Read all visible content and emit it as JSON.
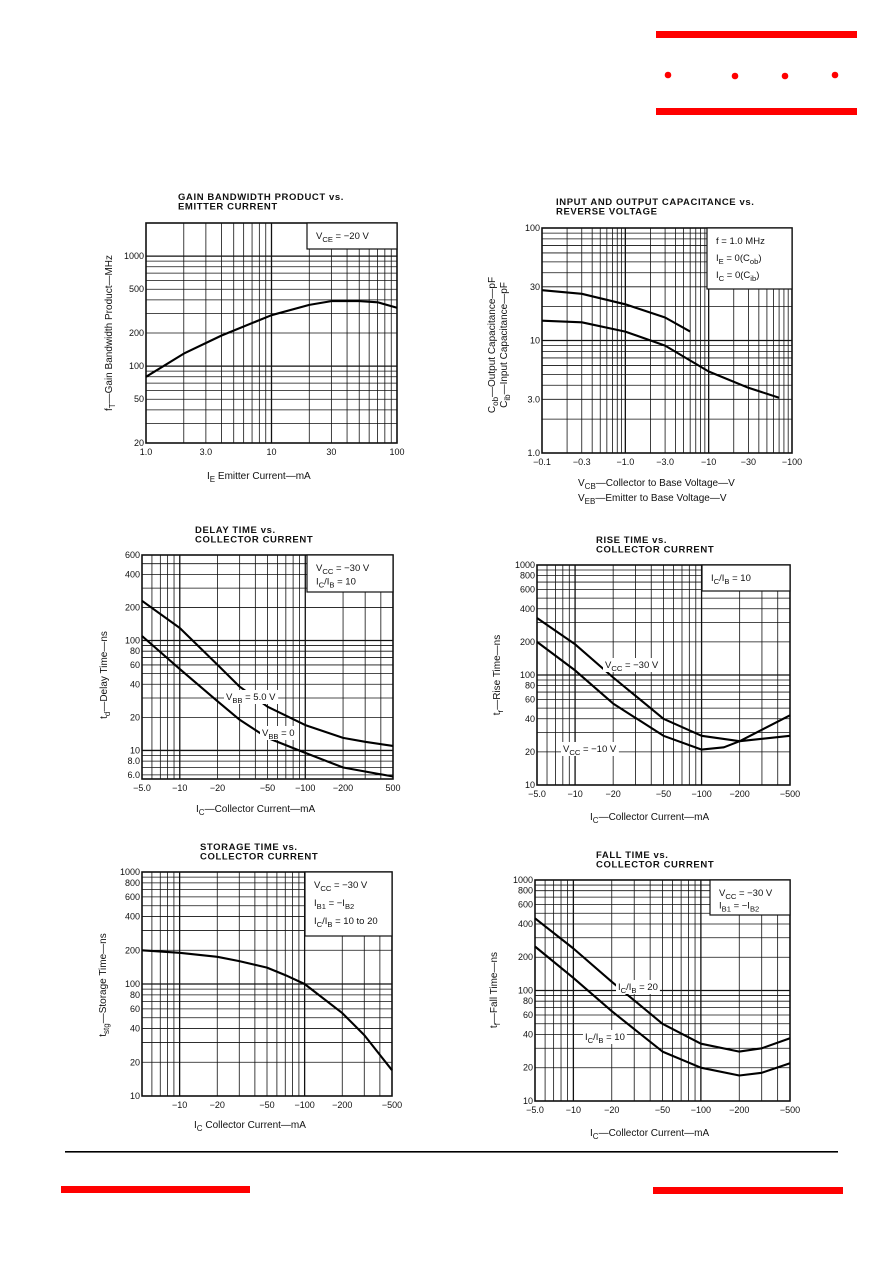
{
  "brand": {
    "accent_color": "#ff0000",
    "rule_color": "#000000"
  },
  "chart_data": [
    {
      "type": "line",
      "title": [
        "GAIN BANDWIDTH PRODUCT vs.",
        "EMITTER CURRENT"
      ],
      "xlabel": [
        "I",
        "_E",
        "  Emitter Current—mA"
      ],
      "ylabel": [
        [
          "f",
          "_T",
          "—Gain Bandwidth Product—MHz"
        ]
      ],
      "xscale": "log",
      "yscale": "log",
      "xlim": [
        1,
        100
      ],
      "ylim": [
        20,
        2000
      ],
      "xticks": [
        {
          "v": 1,
          "t": "1.0"
        },
        {
          "v": 3,
          "t": "3.0"
        },
        {
          "v": 10,
          "t": "10"
        },
        {
          "v": 30,
          "t": "30"
        },
        {
          "v": 100,
          "t": "100"
        }
      ],
      "yticks": [
        {
          "v": 20,
          "t": "20"
        },
        {
          "v": 50,
          "t": "50"
        },
        {
          "v": 100,
          "t": "100"
        },
        {
          "v": 200,
          "t": "200"
        },
        {
          "v": 500,
          "t": "500"
        },
        {
          "v": 1000,
          "t": "1000"
        }
      ],
      "legend": [
        [
          "V",
          "_CE",
          " = −20  V"
        ]
      ],
      "grid": true,
      "series": [
        {
          "name": "",
          "x": [
            1,
            2,
            4,
            10,
            20,
            30,
            50,
            70,
            100
          ],
          "y": [
            80,
            130,
            190,
            290,
            360,
            390,
            390,
            380,
            340
          ]
        }
      ]
    },
    {
      "type": "line",
      "title": [
        "INPUT AND OUTPUT CAPACITANCE vs.",
        "REVERSE VOLTAGE"
      ],
      "xlabel_lines": [
        [
          "V",
          "_CB",
          "—Collector to Base Voltage—V"
        ],
        [
          "V",
          "_EB",
          "—Emitter to Base Voltage—V"
        ]
      ],
      "ylabel": [
        [
          "C",
          "_ob",
          "—Output Capacitance—pF"
        ],
        [
          "C",
          "_ib",
          "—Input Capacitance—pF"
        ]
      ],
      "xscale": "log",
      "yscale": "log",
      "xlim": [
        0.1,
        100
      ],
      "ylim": [
        1,
        100
      ],
      "xticks": [
        {
          "v": 0.1,
          "t": "−0.1"
        },
        {
          "v": 0.3,
          "t": "−0.3"
        },
        {
          "v": 1,
          "t": "−1.0"
        },
        {
          "v": 3,
          "t": "−3.0"
        },
        {
          "v": 10,
          "t": "−10"
        },
        {
          "v": 30,
          "t": "−30"
        },
        {
          "v": 100,
          "t": "−100"
        }
      ],
      "yticks": [
        {
          "v": 1,
          "t": "1.0"
        },
        {
          "v": 3,
          "t": "3.0"
        },
        {
          "v": 10,
          "t": "10"
        },
        {
          "v": 30,
          "t": "30"
        },
        {
          "v": 100,
          "t": "100"
        }
      ],
      "legend": [
        [
          "f = 1.0  MHz"
        ],
        [
          "I",
          "_E",
          " = 0(C",
          "_ob",
          ")"
        ],
        [
          "I",
          "_C",
          " = 0(C",
          "_ib",
          ")"
        ]
      ],
      "grid": true,
      "series": [
        {
          "name": "Cib",
          "x": [
            0.1,
            0.3,
            1,
            3,
            6
          ],
          "y": [
            28,
            26,
            21,
            16,
            12
          ]
        },
        {
          "name": "Cob",
          "x": [
            0.1,
            0.3,
            1,
            3,
            10,
            30,
            70
          ],
          "y": [
            15,
            14.5,
            12,
            9,
            5.3,
            3.8,
            3.1
          ]
        }
      ]
    },
    {
      "type": "line",
      "title": [
        "DELAY TIME vs.",
        "COLLECTOR CURRENT"
      ],
      "xlabel": [
        "I",
        "_C",
        "—Collector Current—mA"
      ],
      "ylabel": [
        [
          "t",
          "_d",
          "—Delay Time—ns"
        ]
      ],
      "xscale": "log",
      "yscale": "log",
      "xlim": [
        5,
        500
      ],
      "ylim": [
        5.5,
        600
      ],
      "xticks": [
        {
          "v": 5,
          "t": "−5.0"
        },
        {
          "v": 10,
          "t": "−10"
        },
        {
          "v": 20,
          "t": "−20"
        },
        {
          "v": 50,
          "t": "−50"
        },
        {
          "v": 100,
          "t": "−100"
        },
        {
          "v": 200,
          "t": "−200"
        },
        {
          "v": 500,
          "t": "500"
        }
      ],
      "yticks": [
        {
          "v": 6,
          "t": "6.0"
        },
        {
          "v": 8,
          "t": "8.0"
        },
        {
          "v": 10,
          "t": "10"
        },
        {
          "v": 20,
          "t": "20"
        },
        {
          "v": 40,
          "t": "40"
        },
        {
          "v": 60,
          "t": "60"
        },
        {
          "v": 80,
          "t": "80"
        },
        {
          "v": 100,
          "t": "100"
        },
        {
          "v": 200,
          "t": "200"
        },
        {
          "v": 400,
          "t": "400"
        },
        {
          "v": 600,
          "t": "600"
        }
      ],
      "legend": [
        [
          "V",
          "_CC",
          " = −30  V"
        ],
        [
          "I",
          "_C",
          "/I",
          "_B",
          " = 10"
        ]
      ],
      "grid": true,
      "series": [
        {
          "name": "VBB=5.0 V",
          "label": [
            "V",
            "_BB",
            " = 5.0  V"
          ],
          "x": [
            5,
            10,
            20,
            30,
            50,
            100,
            200,
            300,
            500
          ],
          "y": [
            230,
            130,
            60,
            38,
            25,
            17,
            13,
            12,
            11
          ]
        },
        {
          "name": "VBB=0",
          "label": [
            "V",
            "_BB",
            " = 0"
          ],
          "x": [
            5,
            10,
            20,
            30,
            50,
            100,
            200,
            500
          ],
          "y": [
            110,
            55,
            28,
            19,
            13,
            9.5,
            7,
            5.8
          ]
        }
      ]
    },
    {
      "type": "line",
      "title": [
        "RISE TIME vs.",
        "COLLECTOR CURRENT"
      ],
      "xlabel": [
        "I",
        "_C",
        "—Collector Current—mA"
      ],
      "ylabel": [
        [
          "t",
          "_r",
          "—Rise Time—ns"
        ]
      ],
      "xscale": "log",
      "yscale": "log",
      "xlim": [
        5,
        500
      ],
      "ylim": [
        10,
        1000
      ],
      "xticks": [
        {
          "v": 5,
          "t": "−5.0"
        },
        {
          "v": 10,
          "t": "−10"
        },
        {
          "v": 20,
          "t": "−20"
        },
        {
          "v": 50,
          "t": "−50"
        },
        {
          "v": 100,
          "t": "−100"
        },
        {
          "v": 200,
          "t": "−200"
        },
        {
          "v": 500,
          "t": "−500"
        }
      ],
      "yticks": [
        {
          "v": 10,
          "t": "10"
        },
        {
          "v": 20,
          "t": "20"
        },
        {
          "v": 40,
          "t": "40"
        },
        {
          "v": 60,
          "t": "60"
        },
        {
          "v": 80,
          "t": "80"
        },
        {
          "v": 100,
          "t": "100"
        },
        {
          "v": 200,
          "t": "200"
        },
        {
          "v": 400,
          "t": "400"
        },
        {
          "v": 600,
          "t": "600"
        },
        {
          "v": 800,
          "t": "800"
        },
        {
          "v": 1000,
          "t": "1000"
        }
      ],
      "legend": [
        [
          "I",
          "_C",
          "/I",
          "_B",
          " = 10"
        ]
      ],
      "grid": true,
      "series": [
        {
          "name": "VCC=-30 V",
          "label": [
            "V",
            "_CC",
            " = −30  V"
          ],
          "x": [
            5,
            10,
            20,
            50,
            100,
            200,
            500
          ],
          "y": [
            330,
            190,
            95,
            40,
            28,
            25,
            28
          ]
        },
        {
          "name": "VCC=-10 V",
          "label": [
            "V",
            "_CC",
            " = −10  V"
          ],
          "x": [
            5,
            10,
            20,
            50,
            100,
            150,
            200,
            500
          ],
          "y": [
            200,
            110,
            55,
            28,
            21,
            22,
            25,
            43
          ]
        }
      ]
    },
    {
      "type": "line",
      "title": [
        "STORAGE TIME vs.",
        "COLLECTOR CURRENT"
      ],
      "xlabel": [
        "I",
        "_C",
        "  Collector Current—mA"
      ],
      "ylabel": [
        [
          "t",
          "_stg",
          "—Storage Time—ns"
        ]
      ],
      "xscale": "log",
      "yscale": "log",
      "xlim": [
        5,
        500
      ],
      "ylim": [
        10,
        1000
      ],
      "xticks": [
        {
          "v": 10,
          "t": "−10"
        },
        {
          "v": 20,
          "t": "−20"
        },
        {
          "v": 50,
          "t": "−50"
        },
        {
          "v": 100,
          "t": "−100"
        },
        {
          "v": 200,
          "t": "−200"
        },
        {
          "v": 500,
          "t": "−500"
        }
      ],
      "yticks": [
        {
          "v": 10,
          "t": "10"
        },
        {
          "v": 20,
          "t": "20"
        },
        {
          "v": 40,
          "t": "40"
        },
        {
          "v": 60,
          "t": "60"
        },
        {
          "v": 80,
          "t": "80"
        },
        {
          "v": 100,
          "t": "100"
        },
        {
          "v": 200,
          "t": "200"
        },
        {
          "v": 400,
          "t": "400"
        },
        {
          "v": 600,
          "t": "600"
        },
        {
          "v": 800,
          "t": "800"
        },
        {
          "v": 1000,
          "t": "1000"
        }
      ],
      "legend": [
        [
          "V",
          "_CC",
          " = −30  V"
        ],
        [
          "I",
          "_B1",
          " = −I",
          "_B2"
        ],
        [
          "I",
          "_C",
          "/I",
          "_B",
          " = 10  to  20"
        ]
      ],
      "grid": true,
      "series": [
        {
          "name": "",
          "x": [
            5,
            10,
            20,
            30,
            50,
            70,
            100,
            200,
            300,
            500
          ],
          "y": [
            200,
            190,
            175,
            160,
            140,
            120,
            100,
            55,
            35,
            17
          ]
        }
      ]
    },
    {
      "type": "line",
      "title": [
        "FALL TIME vs.",
        "COLLECTOR CURRENT"
      ],
      "xlabel": [
        "I",
        "_C",
        "—Collector Current—mA"
      ],
      "ylabel": [
        [
          "t",
          "_f",
          "—Fall Time—ns"
        ]
      ],
      "xscale": "log",
      "yscale": "log",
      "xlim": [
        5,
        500
      ],
      "ylim": [
        10,
        1000
      ],
      "xticks": [
        {
          "v": 5,
          "t": "−5.0"
        },
        {
          "v": 10,
          "t": "−10"
        },
        {
          "v": 20,
          "t": "−20"
        },
        {
          "v": 50,
          "t": "−50"
        },
        {
          "v": 100,
          "t": "−100"
        },
        {
          "v": 200,
          "t": "−200"
        },
        {
          "v": 500,
          "t": "−500"
        }
      ],
      "yticks": [
        {
          "v": 10,
          "t": "10"
        },
        {
          "v": 20,
          "t": "20"
        },
        {
          "v": 40,
          "t": "40"
        },
        {
          "v": 60,
          "t": "60"
        },
        {
          "v": 80,
          "t": "80"
        },
        {
          "v": 100,
          "t": "100"
        },
        {
          "v": 200,
          "t": "200"
        },
        {
          "v": 400,
          "t": "400"
        },
        {
          "v": 600,
          "t": "600"
        },
        {
          "v": 800,
          "t": "800"
        },
        {
          "v": 1000,
          "t": "1000"
        }
      ],
      "legend": [
        [
          "V",
          "_CC",
          " = −30  V"
        ],
        [
          "I",
          "_B1",
          " = −I",
          "_B2"
        ]
      ],
      "grid": true,
      "series": [
        {
          "name": "IC/IB=20",
          "label": [
            "I",
            "_C",
            "/I",
            "_B",
            " = 20"
          ],
          "x": [
            5,
            10,
            20,
            50,
            100,
            200,
            300,
            500
          ],
          "y": [
            450,
            240,
            120,
            50,
            33,
            28,
            30,
            37
          ]
        },
        {
          "name": "IC/IB=10",
          "label": [
            "I",
            "_C",
            "/I",
            "_B",
            " = 10"
          ],
          "x": [
            5,
            10,
            20,
            50,
            100,
            200,
            300,
            500
          ],
          "y": [
            250,
            130,
            65,
            28,
            20,
            17,
            18,
            22
          ]
        }
      ]
    }
  ]
}
